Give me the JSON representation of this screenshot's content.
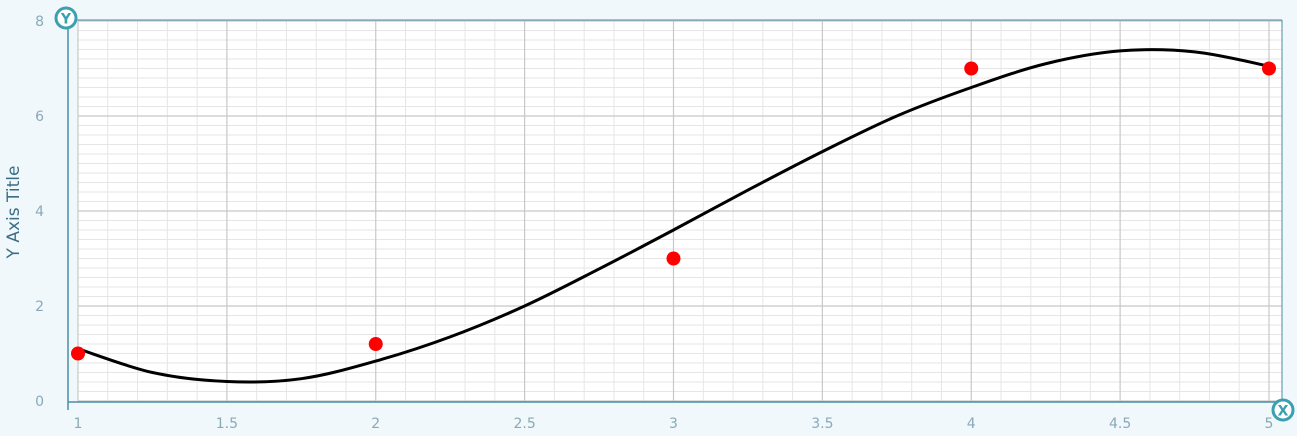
{
  "chart_data": {
    "type": "scatter",
    "title": "",
    "xlabel": "",
    "ylabel": "Y Axis Title",
    "xlim": [
      1,
      5
    ],
    "ylim": [
      0,
      8
    ],
    "x_ticks": [
      "1",
      "1.5",
      "2",
      "2.5",
      "3",
      "3.5",
      "4",
      "4.5",
      "5"
    ],
    "y_ticks": [
      "0",
      "2",
      "4",
      "6",
      "8"
    ],
    "grid": true,
    "series": [
      {
        "type": "scatter",
        "color": "#ff0000",
        "points": [
          {
            "x": 1,
            "y": 1.0
          },
          {
            "x": 2,
            "y": 1.2
          },
          {
            "x": 3,
            "y": 3.0
          },
          {
            "x": 4,
            "y": 7.0
          },
          {
            "x": 5,
            "y": 7.0
          }
        ]
      },
      {
        "type": "line",
        "color": "#000000",
        "curve": "cubic fit",
        "points": [
          {
            "x": 1.0,
            "y": 1.1
          },
          {
            "x": 1.25,
            "y": 0.6
          },
          {
            "x": 1.5,
            "y": 0.41
          },
          {
            "x": 1.75,
            "y": 0.47
          },
          {
            "x": 2.0,
            "y": 0.84
          },
          {
            "x": 2.25,
            "y": 1.35
          },
          {
            "x": 2.5,
            "y": 2.0
          },
          {
            "x": 2.75,
            "y": 2.78
          },
          {
            "x": 3.0,
            "y": 3.6
          },
          {
            "x": 3.25,
            "y": 4.44
          },
          {
            "x": 3.5,
            "y": 5.25
          },
          {
            "x": 3.75,
            "y": 6.0
          },
          {
            "x": 4.0,
            "y": 6.6
          },
          {
            "x": 4.25,
            "y": 7.1
          },
          {
            "x": 4.5,
            "y": 7.37
          },
          {
            "x": 4.75,
            "y": 7.35
          },
          {
            "x": 5.0,
            "y": 7.05
          }
        ]
      }
    ]
  },
  "icons": {
    "y_axis_icon": "Y",
    "x_axis_icon": "X"
  },
  "colors": {
    "background": "#f1f8fc",
    "plot_background": "#ffffff",
    "axis": "#4a8ea3",
    "grid_major": "#c8c8c8",
    "grid_minor": "#e6e6e6"
  }
}
